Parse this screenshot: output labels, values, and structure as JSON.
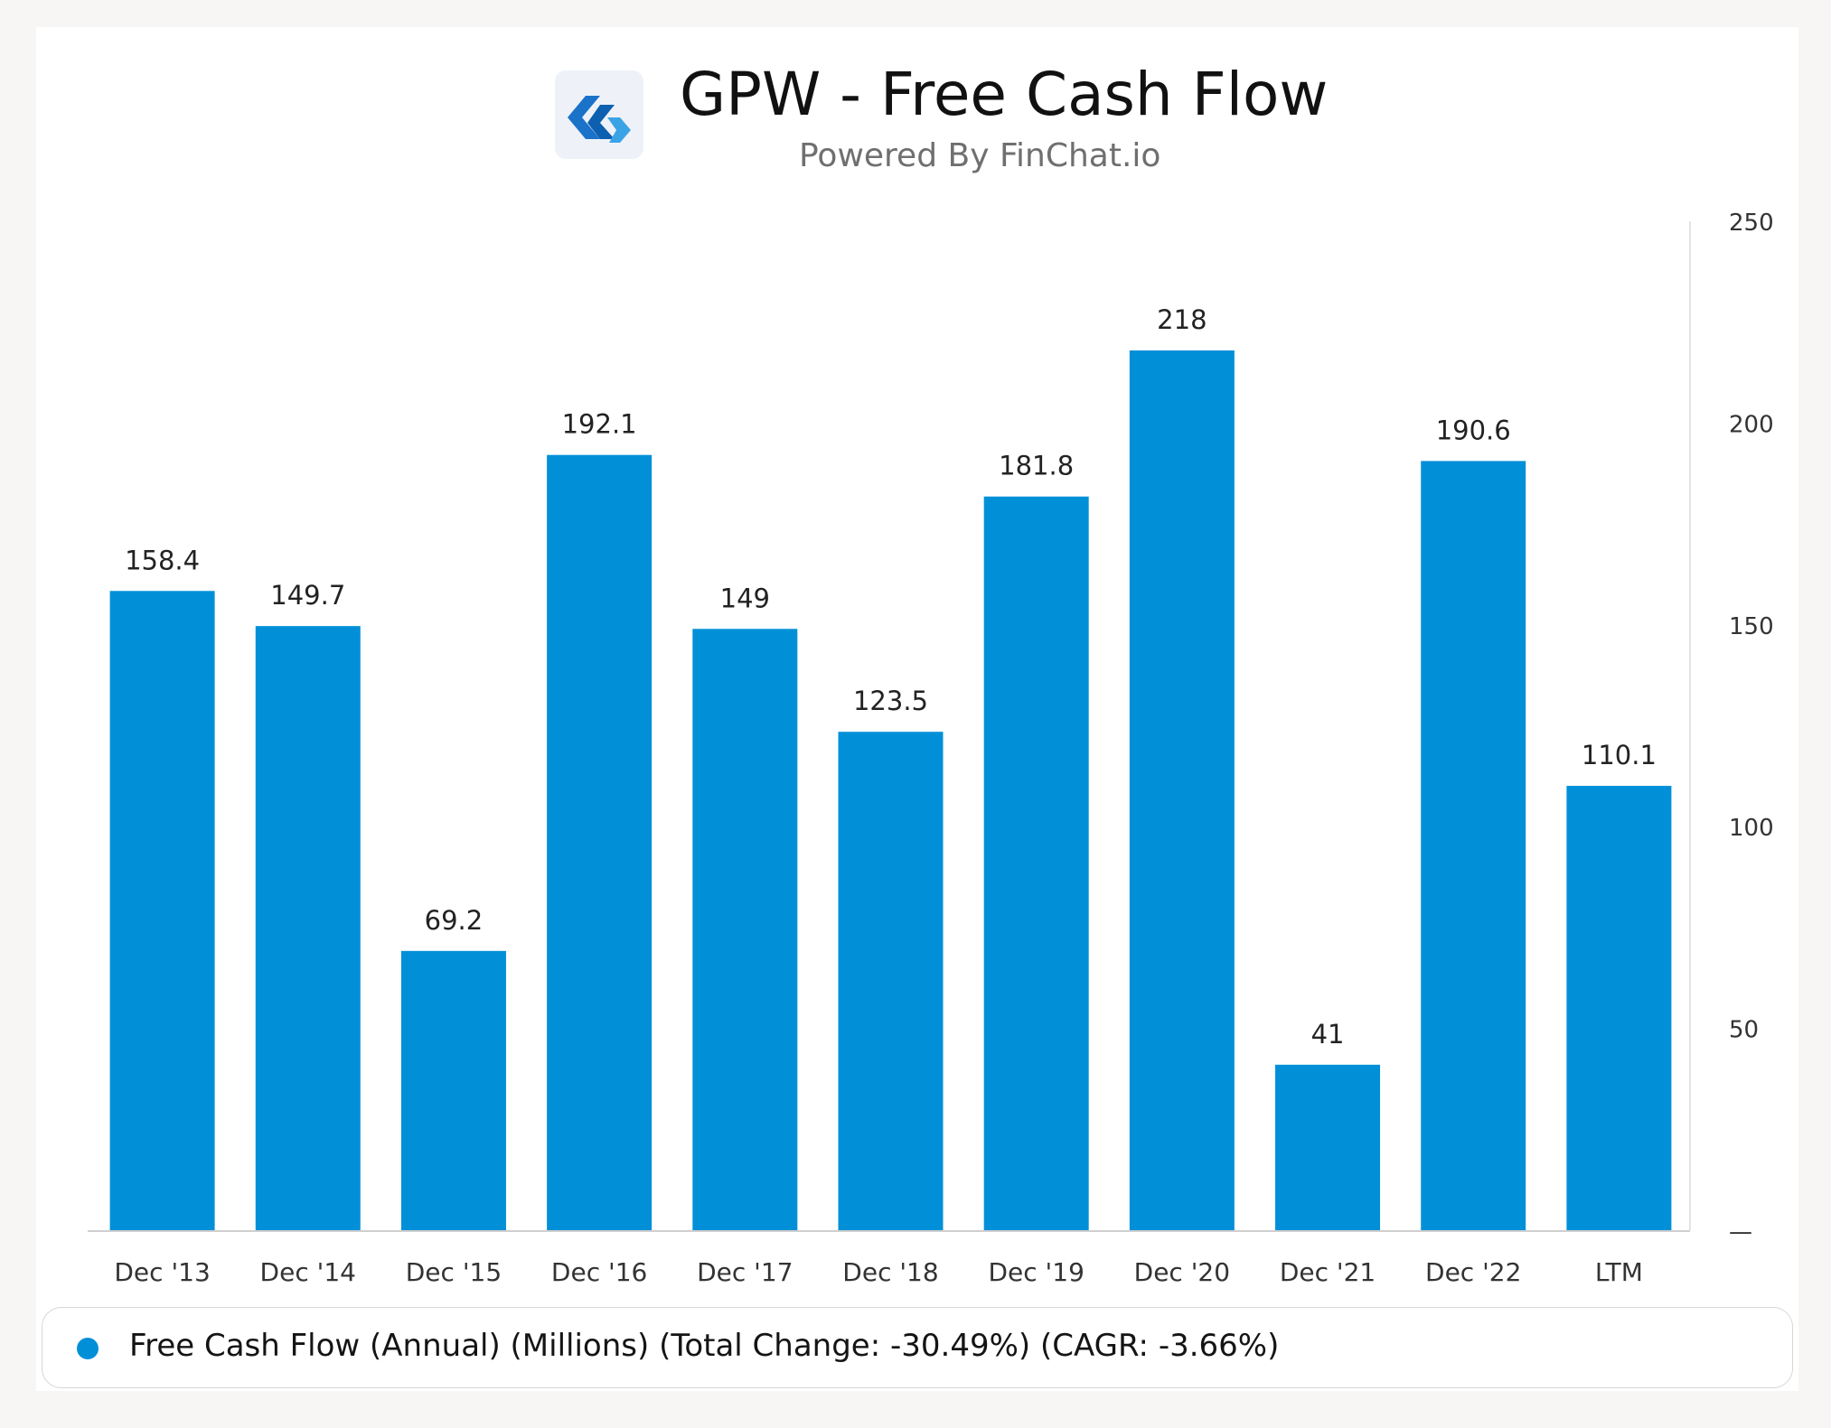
{
  "header": {
    "title": "GPW - Free Cash Flow",
    "subtitle": "Powered By FinChat.io",
    "logo_icon": "finchat-logo-icon"
  },
  "legend": {
    "label": "Free Cash Flow (Annual) (Millions) (Total Change: -30.49%) (CAGR: -3.66%)",
    "color": "#0190d8"
  },
  "chart_data": {
    "type": "bar",
    "categories": [
      "Dec '13",
      "Dec '14",
      "Dec '15",
      "Dec '16",
      "Dec '17",
      "Dec '18",
      "Dec '19",
      "Dec '20",
      "Dec '21",
      "Dec '22",
      "LTM"
    ],
    "series": [
      {
        "name": "Free Cash Flow (Annual) (Millions) (Total Change: -30.49%) (CAGR: -3.66%)",
        "values": [
          158.4,
          149.7,
          69.2,
          192.1,
          149,
          123.5,
          181.8,
          218,
          41,
          190.6,
          110.1
        ],
        "data_labels": [
          "158.4",
          "149.7",
          "69.2",
          "192.1",
          "149",
          "123.5",
          "181.8",
          "218",
          "41",
          "190.6",
          "110.1"
        ]
      }
    ],
    "ylim": [
      0,
      250
    ],
    "y_ticks": [
      0,
      50,
      100,
      150,
      200,
      250
    ],
    "y_tick_labels": [
      "—",
      "50",
      "100",
      "150",
      "200",
      "250"
    ],
    "y_axis_side": "right",
    "bar_color": "#0190d8",
    "grid": false,
    "legend_position": "bottom"
  }
}
